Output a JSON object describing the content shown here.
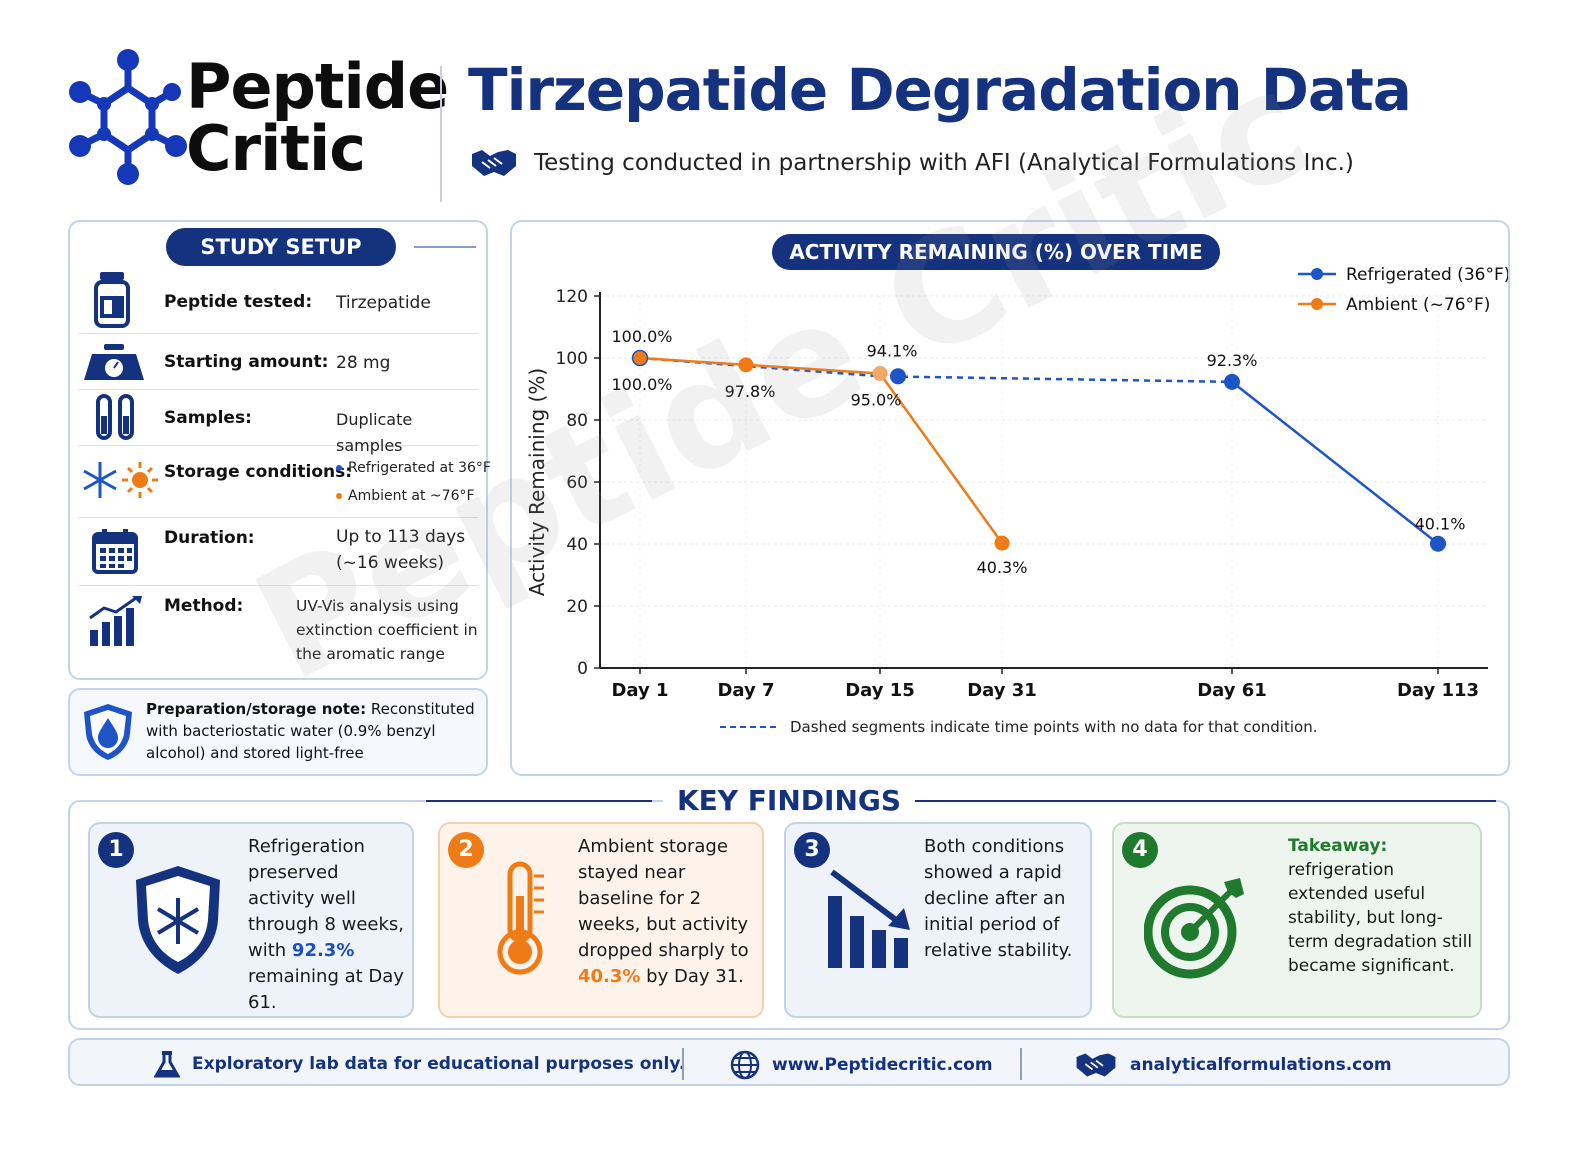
{
  "header": {
    "logo_line1": "Peptide",
    "logo_line2": "Critic",
    "title": "Tirzepatide Degradation Data",
    "subtitle": "Testing conducted in partnership with AFI (Analytical Formulations Inc.)"
  },
  "setup": {
    "title": "STUDY SETUP",
    "rows": [
      {
        "label": "Peptide tested:",
        "value": "Tirzepatide",
        "icon": "vial-icon"
      },
      {
        "label": "Starting amount:",
        "value": "28 mg",
        "icon": "scale-icon"
      },
      {
        "label": "Samples:",
        "value": "Duplicate samples",
        "icon": "test-tubes-icon"
      },
      {
        "label": "Storage conditions:",
        "bullets": [
          "Refrigerated at 36°F",
          "Ambient at ~76°F"
        ],
        "icon": "snowflake-sun-icon"
      },
      {
        "label": "Duration:",
        "value_lines": [
          "Up to 113 days",
          "(~16 weeks)"
        ],
        "icon": "calendar-icon"
      },
      {
        "label": "Method:",
        "value_lines": [
          "UV-Vis analysis using",
          "extinction coefficient in",
          "the aromatic range"
        ],
        "icon": "bar-growth-icon"
      }
    ],
    "note_label": "Preparation/storage note:",
    "note_text": "Reconstituted with bacteriostatic water (0.9% benzyl alcohol) and stored light-free"
  },
  "chart_data": {
    "type": "line",
    "title": "ACTIVITY REMAINING (%) OVER TIME",
    "ylabel": "Activity Remaining (%)",
    "ylim": [
      0,
      120
    ],
    "yticks": [
      0,
      20,
      40,
      60,
      80,
      100,
      120
    ],
    "x_ticks": [
      {
        "label": "Day 1",
        "day": 1
      },
      {
        "label": "Day 7",
        "day": 7
      },
      {
        "label": "Day 15",
        "day": 15
      },
      {
        "label": "Day 31",
        "day": 31
      },
      {
        "label": "Day 61",
        "day": 61
      },
      {
        "label": "Day 113",
        "day": 113
      }
    ],
    "series": [
      {
        "name": "Refrigerated (36°F)",
        "color": "#1d55c7",
        "points": [
          {
            "day": 1,
            "value": 100.0,
            "label": "100.0%"
          },
          {
            "day": 15,
            "value": 94.1,
            "label": "94.1%"
          },
          {
            "day": 61,
            "value": 92.3,
            "label": "92.3%"
          },
          {
            "day": 113,
            "value": 40.1,
            "label": "40.1%"
          }
        ]
      },
      {
        "name": "Ambient (~76°F)",
        "color": "#ef7b16",
        "points": [
          {
            "day": 1,
            "value": 100.0,
            "label": "100.0%"
          },
          {
            "day": 7,
            "value": 97.8,
            "label": "97.8%"
          },
          {
            "day": 15,
            "value": 95.0,
            "label": "95.0%"
          },
          {
            "day": 31,
            "value": 40.3,
            "label": "40.3%"
          }
        ]
      }
    ],
    "legend_position": "top-right",
    "footnote": "Dashed segments indicate time points with no data for that condition.",
    "watermark": "Peptide Critic"
  },
  "findings": {
    "title": "KEY FINDINGS",
    "cards": [
      {
        "num": "1",
        "pre": "Refrigeration preserved activity well through 8 weeks, with ",
        "hl": "92.3%",
        "post": " remaining at Day 61."
      },
      {
        "num": "2",
        "pre": "Ambient storage stayed near baseline for 2 weeks, but activity dropped sharply to ",
        "hl": "40.3%",
        "post": " by Day 31."
      },
      {
        "num": "3",
        "pre": "Both conditions showed a rapid decline after an initial period of relative stability.",
        "hl": "",
        "post": ""
      },
      {
        "num": "4",
        "hl": "Takeaway:",
        "post": "refrigeration extended useful stability, but long-term degradation still became significant."
      }
    ]
  },
  "footer": {
    "disclaimer": "Exploratory lab data for educational purposes only.",
    "site1": "www.Peptidecritic.com",
    "site2": "analyticalformulations.com"
  }
}
